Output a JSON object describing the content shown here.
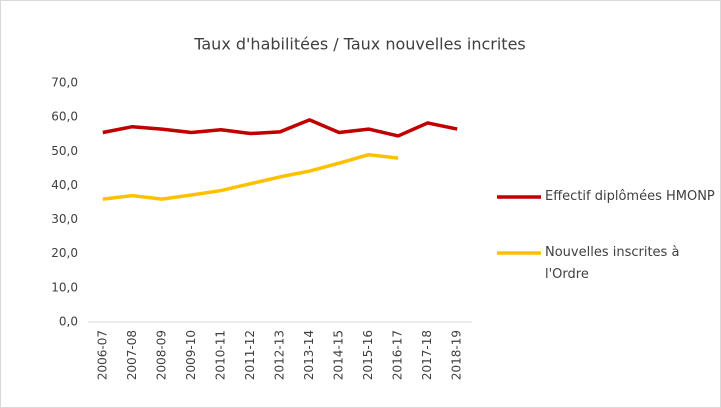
{
  "chart_data": {
    "type": "line",
    "title": "Taux d'habilitées / Taux nouvelles incrites",
    "categories": [
      "2006-07",
      "2007-08",
      "2008-09",
      "2009-10",
      "2010-11",
      "2011-12",
      "2012-13",
      "2013-14",
      "2014-15",
      "2015-16",
      "2016-17",
      "2017-18",
      "2018-19"
    ],
    "series": [
      {
        "name": "Effectif diplômées HMONP",
        "color": "#c00000",
        "values": [
          55.5,
          57.2,
          56.5,
          55.5,
          56.3,
          55.2,
          55.7,
          59.2,
          55.5,
          56.5,
          54.5,
          58.3,
          56.5
        ]
      },
      {
        "name": "Nouvelles inscrites à l'Ordre",
        "color": "#ffc000",
        "values": [
          36.0,
          37.0,
          36.0,
          37.2,
          38.5,
          40.5,
          42.5,
          44.2,
          46.5,
          49.0,
          48.0,
          null,
          null
        ]
      }
    ],
    "ylim": [
      0,
      70
    ],
    "yticks": [
      {
        "value": 0,
        "label": "0,0"
      },
      {
        "value": 10,
        "label": "10,0"
      },
      {
        "value": 20,
        "label": "20,0"
      },
      {
        "value": 30,
        "label": "30,0"
      },
      {
        "value": 40,
        "label": "40,0"
      },
      {
        "value": 50,
        "label": "50,0"
      },
      {
        "value": 60,
        "label": "60,0"
      },
      {
        "value": 70,
        "label": "70,0"
      }
    ],
    "grid": false,
    "legend": "right"
  }
}
